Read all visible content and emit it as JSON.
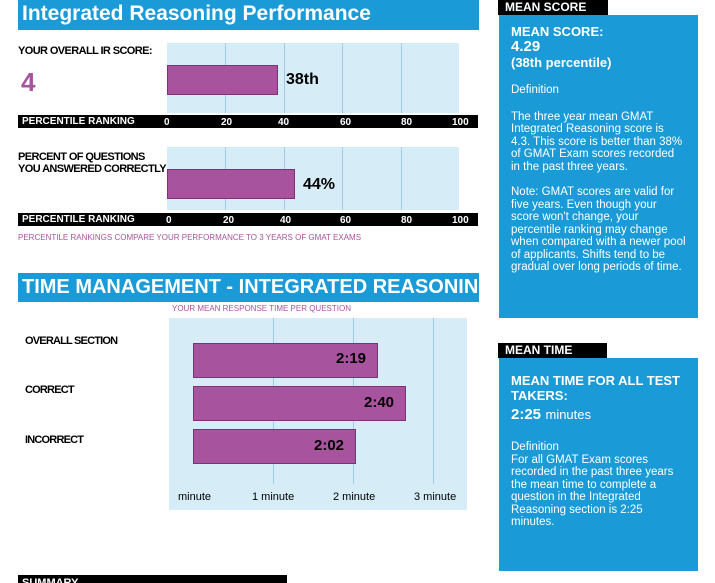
{
  "header": {
    "ir_title": "Integrated Reasoning Performance",
    "tm_title": "TIME MANAGEMENT - INTEGRATED REASONING",
    "summary_title": "SUMMARY"
  },
  "score_section": {
    "overall_label": "YOUR OVERALL IR SCORE:",
    "score_value": "4",
    "bar_label": "38th",
    "bar_value": 38,
    "axis_label": "PERCENTILE RANKING",
    "ticks": [
      "0",
      "20",
      "40",
      "60",
      "80",
      "100"
    ]
  },
  "percent_section": {
    "label": "PERCENT OF QUESTIONS YOU ANSWERED CORRECTLY",
    "bar_label": "44%",
    "bar_value": 44,
    "axis_label": "PERCENTILE RANKING",
    "ticks": [
      "0",
      "20",
      "40",
      "60",
      "80",
      "100"
    ],
    "footnote": "PERCENTILE RANKINGS COMPARE YOUR PERFORMANCE TO 3 YEARS OF GMAT EXAMS"
  },
  "time_section": {
    "chart_title": "YOUR MEAN RESPONSE TIME PER QUESTION",
    "rows": [
      {
        "label": "OVERALL SECTION",
        "value_text": "2:19",
        "seconds": 139
      },
      {
        "label": "CORRECT",
        "value_text": "2:40",
        "seconds": 160
      },
      {
        "label": "INCORRECT",
        "value_text": "2:02",
        "seconds": 122
      }
    ],
    "x_ticks": [
      "minute",
      "1 minute",
      "2 minute",
      "3 minute"
    ],
    "x_max_seconds": 180
  },
  "mean_score_panel": {
    "tag": "MEAN SCORE",
    "heading": "MEAN SCORE:",
    "value": "4.29",
    "percentile": "(38th percentile)",
    "definition_label": "Definition",
    "paragraph1": "The three year mean GMAT Integrated Reasoning score is 4.3. This score is better than 38% of GMAT Exam scores recorded in the past three years.",
    "paragraph2": "Note:  GMAT scores are valid for five years. Even though your score won't change, your percentile ranking may change when compared with a newer pool of applicants.  Shifts tend to be gradual over long periods of time."
  },
  "mean_time_panel": {
    "tag": "MEAN TIME",
    "heading": "MEAN TIME FOR ALL TEST TAKERS:",
    "value": "2:25",
    "unit": "minutes",
    "definition_label": "Definition",
    "paragraph": "For all GMAT Exam scores recorded in the past three years the mean time to complete a question in the Integrated Reasoning  section is 2:25 minutes."
  },
  "colors": {
    "accent": "#1a9ad6",
    "bar": "#a8539e",
    "chart_bg": "#d6ecf7",
    "score": "#a8539e"
  }
}
